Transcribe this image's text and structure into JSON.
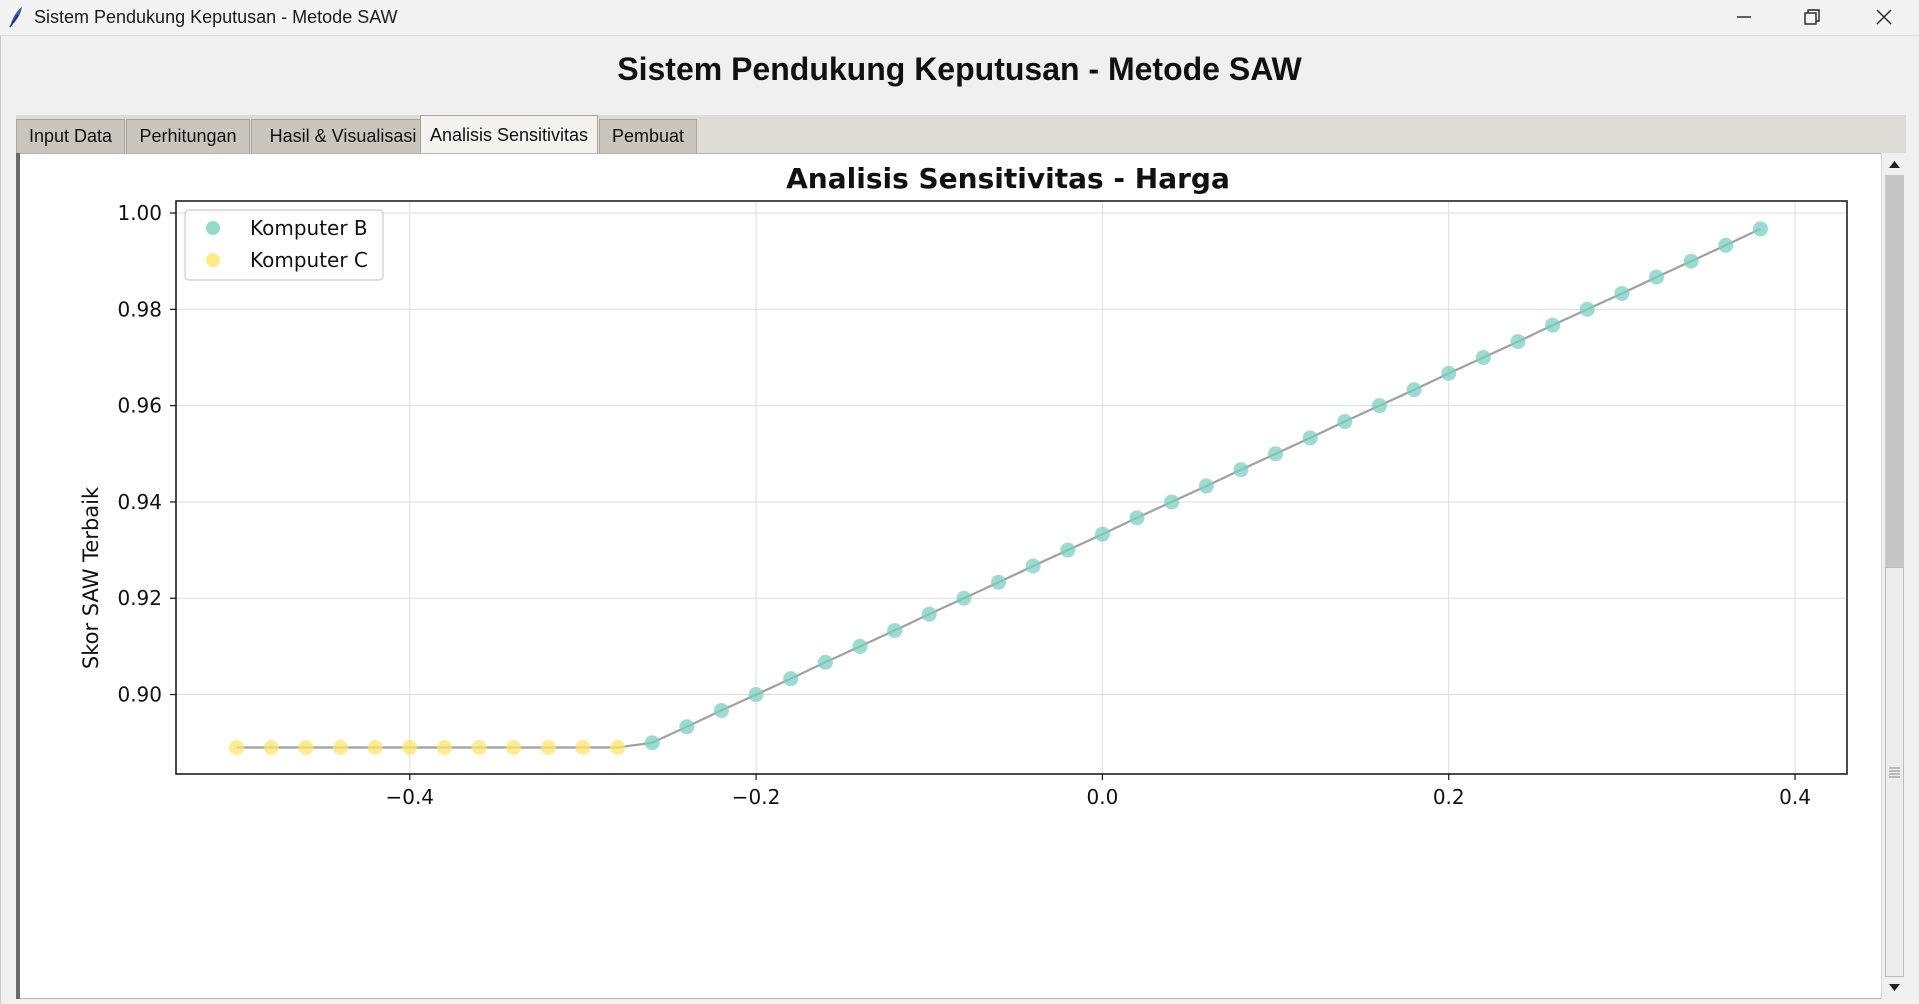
{
  "window": {
    "title": "Sistem Pendukung Keputusan - Metode SAW",
    "app_icon": "feather-icon",
    "controls": [
      "minimize-icon",
      "restore-icon",
      "close-icon"
    ]
  },
  "app": {
    "heading": "Sistem Pendukung Keputusan - Metode SAW"
  },
  "tabs": [
    {
      "label": "Input Data",
      "active": false
    },
    {
      "label": "Perhitungan",
      "active": false
    },
    {
      "label": "Hasil & Visualisasi",
      "active": false
    },
    {
      "label": "Analisis Sensitivitas",
      "active": true
    },
    {
      "label": "Pembuat",
      "active": false
    }
  ],
  "chart_data": {
    "type": "line",
    "title": "Analisis Sensitivitas - Harga",
    "xlabel": "",
    "ylabel": "Skor SAW Terbaik",
    "xlim": [
      -0.535,
      0.43
    ],
    "ylim": [
      0.8835,
      1.0025
    ],
    "xticks": [
      -0.4,
      -0.2,
      0.0,
      0.2,
      0.4
    ],
    "xtick_labels": [
      "−0.4",
      "−0.2",
      "0.0",
      "0.2",
      "0.4"
    ],
    "yticks": [
      0.9,
      0.92,
      0.94,
      0.96,
      0.98,
      1.0
    ],
    "ytick_labels": [
      "0.90",
      "0.92",
      "0.94",
      "0.96",
      "0.98",
      "1.00"
    ],
    "grid": true,
    "legend_position": "top-left",
    "line_color": "#a0a0a0",
    "series": [
      {
        "name": "Komputer B",
        "color": "#7ccfc0",
        "x": [
          -0.26,
          -0.24,
          -0.22,
          -0.2,
          -0.18,
          -0.16,
          -0.14,
          -0.12,
          -0.1,
          -0.08,
          -0.06,
          -0.04,
          -0.02,
          0.0,
          0.02,
          0.04,
          0.06,
          0.08,
          0.1,
          0.12,
          0.14,
          0.16,
          0.18,
          0.2,
          0.22,
          0.24,
          0.26,
          0.28,
          0.3,
          0.32,
          0.34,
          0.36,
          0.38
        ],
        "y": [
          0.89,
          0.8933,
          0.8967,
          0.9,
          0.9033,
          0.9067,
          0.91,
          0.9133,
          0.9167,
          0.92,
          0.9233,
          0.9267,
          0.93,
          0.9333,
          0.9367,
          0.94,
          0.9433,
          0.9467,
          0.95,
          0.9533,
          0.9567,
          0.96,
          0.9633,
          0.9667,
          0.97,
          0.9733,
          0.9767,
          0.98,
          0.9833,
          0.9867,
          0.99,
          0.9933,
          0.9967
        ]
      },
      {
        "name": "Komputer C",
        "color": "#ffe66d",
        "x": [
          -0.5,
          -0.48,
          -0.46,
          -0.44,
          -0.42,
          -0.4,
          -0.38,
          -0.36,
          -0.34,
          -0.32,
          -0.3,
          -0.28
        ],
        "y": [
          0.889,
          0.889,
          0.889,
          0.889,
          0.889,
          0.889,
          0.889,
          0.889,
          0.889,
          0.889,
          0.889,
          0.889
        ]
      }
    ]
  }
}
